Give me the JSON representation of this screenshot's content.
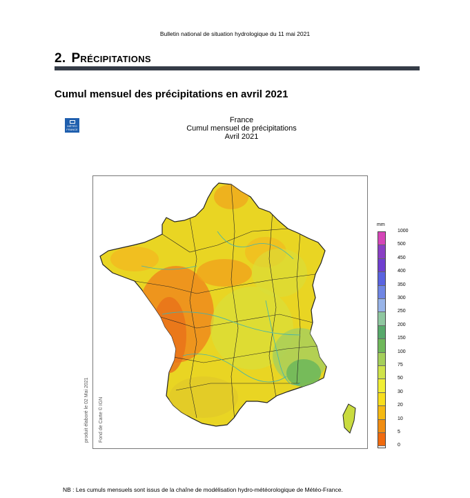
{
  "header": {
    "bulletin": "Bulletin national de situation hydrologique du 11 mai 2021"
  },
  "section": {
    "number": "2.",
    "title": "Précipitations"
  },
  "subtitle": "Cumul mensuel des précipitations en avril 2021",
  "logo": {
    "text_line1": "MÉTÉO",
    "text_line2": "FRANCE"
  },
  "map": {
    "title_line1": "France",
    "title_line2": "Cumul mensuel de précipitations",
    "title_line3": "Avril 2021",
    "credit_produced": "produit élaboré le 02 Mai 2021",
    "credit_basemap": "Fond de Carte © IGN"
  },
  "legend": {
    "unit": "mm",
    "labels": [
      "1000",
      "500",
      "450",
      "400",
      "350",
      "300",
      "250",
      "200",
      "150",
      "100",
      "75",
      "50",
      "30",
      "20",
      "10",
      "5",
      "0"
    ],
    "colors": [
      "#d546b8",
      "#8a3fc4",
      "#6f3fd0",
      "#5a63e0",
      "#6f86e4",
      "#98b4e8",
      "#8fc7a0",
      "#57a96b",
      "#6fb85b",
      "#a4cf5a",
      "#cfe34a",
      "#f0ee35",
      "#f7de1d",
      "#f5b912",
      "#f08d12",
      "#f06a0e"
    ]
  },
  "footnote": "NB : Les cumuls mensuels sont issus de la chaîne de modélisation hydro-météorologique de Météo-France."
}
